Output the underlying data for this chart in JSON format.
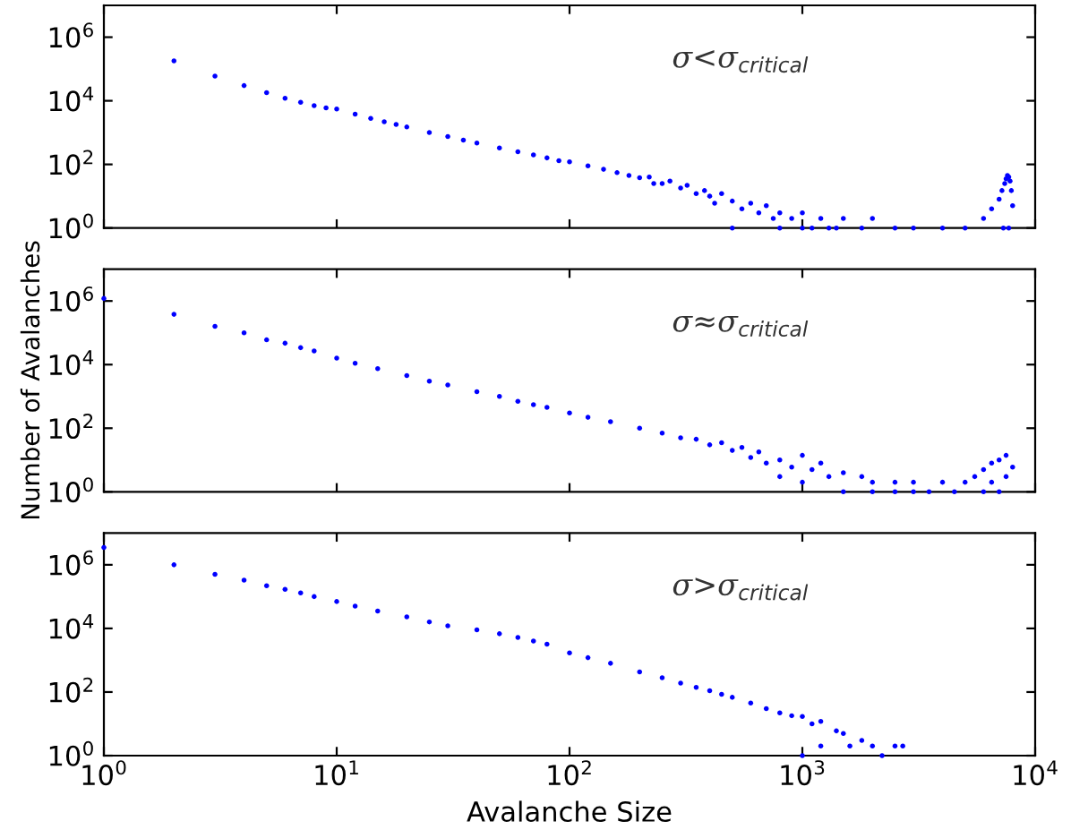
{
  "chart_data": [
    {
      "type": "scatter",
      "log": "xy",
      "xlim": [
        1,
        10000
      ],
      "ylim": [
        1,
        10000000
      ],
      "tick_labels": "y",
      "marker": "circle",
      "grid": false,
      "legend": false,
      "xticks": [
        {
          "value": 1,
          "label": null
        },
        {
          "value": 10,
          "label": null
        },
        {
          "value": 100,
          "label": null
        },
        {
          "value": 1000,
          "label": null
        },
        {
          "value": 10000,
          "label": null
        }
      ],
      "yticks": [
        {
          "value": 1,
          "label": "10$^{0}$"
        },
        {
          "value": 100,
          "label": "10$^{2}$"
        },
        {
          "value": 10000,
          "label": "10$^{4}$"
        },
        {
          "value": 1000000,
          "label": "10$^{6}$"
        }
      ],
      "annotations": [
        "σ<σ$_{critical}$"
      ],
      "series": [
        {
          "color": "#0000ff",
          "x": [
            2,
            3,
            4,
            5,
            6,
            7,
            8,
            9,
            10,
            12,
            14,
            16,
            18,
            20,
            25,
            30,
            35,
            40,
            50,
            60,
            70,
            80,
            90,
            100,
            120,
            140,
            160,
            180,
            200,
            220,
            230,
            250,
            270,
            300,
            320,
            350,
            380,
            400,
            420,
            450,
            500,
            500,
            550,
            600,
            650,
            700,
            750,
            800,
            800,
            900,
            1000,
            1000,
            1100,
            1200,
            1300,
            1400,
            1500,
            1800,
            2000,
            2500,
            3000,
            4000,
            5000,
            6000,
            6500,
            7000,
            7200,
            7300,
            7400,
            7500,
            7600,
            7700,
            7700,
            7800,
            7900,
            8000
          ],
          "values": [
            180000,
            60000,
            30000,
            18000,
            12000,
            9000,
            7000,
            6000,
            5500,
            3800,
            2800,
            2200,
            1800,
            1500,
            1000,
            750,
            580,
            470,
            330,
            250,
            200,
            160,
            130,
            120,
            90,
            70,
            55,
            45,
            38,
            40,
            25,
            25,
            30,
            18,
            22,
            12,
            15,
            10,
            6,
            12,
            7,
            1,
            4,
            6,
            3,
            5,
            2,
            3,
            1,
            2,
            3,
            1,
            1,
            2,
            1,
            1,
            2,
            1,
            2,
            1,
            1,
            1,
            1,
            2,
            4,
            8,
            15,
            1,
            25,
            35,
            45,
            40,
            1,
            30,
            15,
            5
          ]
        }
      ]
    },
    {
      "type": "scatter",
      "log": "xy",
      "xlim": [
        1,
        10000
      ],
      "ylim": [
        1,
        10000000
      ],
      "tick_labels": "y",
      "marker": "circle",
      "grid": false,
      "legend": false,
      "ylabel": "Number of Avalanches",
      "xticks": [
        {
          "value": 1,
          "label": null
        },
        {
          "value": 10,
          "label": null
        },
        {
          "value": 100,
          "label": null
        },
        {
          "value": 1000,
          "label": null
        },
        {
          "value": 10000,
          "label": null
        }
      ],
      "yticks": [
        {
          "value": 1,
          "label": "10$^{0}$"
        },
        {
          "value": 100,
          "label": "10$^{2}$"
        },
        {
          "value": 10000,
          "label": "10$^{4}$"
        },
        {
          "value": 1000000,
          "label": "10$^{6}$"
        }
      ],
      "annotations": [
        "σ≈σ$_{critical}$"
      ],
      "series": [
        {
          "color": "#0000ff",
          "x": [
            1,
            2,
            3,
            4,
            5,
            6,
            7,
            8,
            10,
            12,
            15,
            20,
            25,
            30,
            40,
            50,
            60,
            70,
            80,
            100,
            120,
            150,
            200,
            250,
            300,
            350,
            400,
            450,
            500,
            550,
            600,
            650,
            700,
            800,
            800,
            900,
            1000,
            1000,
            1100,
            1200,
            1300,
            1500,
            1500,
            1800,
            2000,
            2000,
            2500,
            2500,
            3000,
            3000,
            3500,
            4000,
            4500,
            5000,
            5500,
            6000,
            6000,
            6500,
            6500,
            7000,
            7000,
            7500,
            7500,
            8000
          ],
          "values": [
            1200000,
            380000,
            160000,
            100000,
            60000,
            47000,
            34000,
            27000,
            16000,
            11000,
            7500,
            4500,
            3000,
            2300,
            1400,
            1000,
            700,
            550,
            450,
            300,
            220,
            160,
            100,
            70,
            50,
            45,
            30,
            35,
            20,
            25,
            12,
            18,
            8,
            10,
            3,
            6,
            14,
            2,
            5,
            8,
            3,
            4,
            1,
            3,
            2,
            1,
            2,
            1,
            1,
            2,
            1,
            2,
            1,
            2,
            3,
            5,
            1,
            8,
            2,
            10,
            1,
            14,
            3,
            6
          ]
        }
      ]
    },
    {
      "type": "scatter",
      "log": "xy",
      "xlim": [
        1,
        10000
      ],
      "ylim": [
        1,
        10000000
      ],
      "marker": "circle",
      "grid": false,
      "legend": false,
      "xlabel": "Avalanche Size",
      "xticks": [
        {
          "value": 1,
          "label": "10$^{0}$"
        },
        {
          "value": 10,
          "label": "10$^{1}$"
        },
        {
          "value": 100,
          "label": "10$^{2}$"
        },
        {
          "value": 1000,
          "label": "10$^{3}$"
        },
        {
          "value": 10000,
          "label": "10$^{4}$"
        }
      ],
      "yticks": [
        {
          "value": 1,
          "label": "10$^{0}$"
        },
        {
          "value": 100,
          "label": "10$^{2}$"
        },
        {
          "value": 10000,
          "label": "10$^{4}$"
        },
        {
          "value": 1000000,
          "label": "10$^{6}$"
        }
      ],
      "annotations": [
        "σ>σ$_{critical}$"
      ],
      "series": [
        {
          "color": "#0000ff",
          "x": [
            1,
            2,
            3,
            4,
            5,
            6,
            7,
            8,
            10,
            12,
            15,
            20,
            25,
            30,
            40,
            50,
            60,
            70,
            80,
            100,
            120,
            150,
            200,
            250,
            300,
            350,
            400,
            450,
            500,
            600,
            700,
            800,
            900,
            1000,
            1000,
            1100,
            1200,
            1200,
            1400,
            1500,
            1600,
            1800,
            2000,
            2200,
            2500,
            2700
          ],
          "values": [
            3500000,
            1000000,
            500000,
            330000,
            220000,
            170000,
            130000,
            100000,
            70000,
            50000,
            35000,
            23000,
            16000,
            12000,
            9000,
            6800,
            5200,
            4000,
            3200,
            1700,
            1200,
            800,
            430,
            280,
            190,
            140,
            110,
            85,
            68,
            45,
            30,
            22,
            18,
            17,
            1,
            10,
            12,
            2,
            6,
            5,
            2,
            3,
            2,
            1,
            2,
            2
          ]
        }
      ]
    }
  ]
}
